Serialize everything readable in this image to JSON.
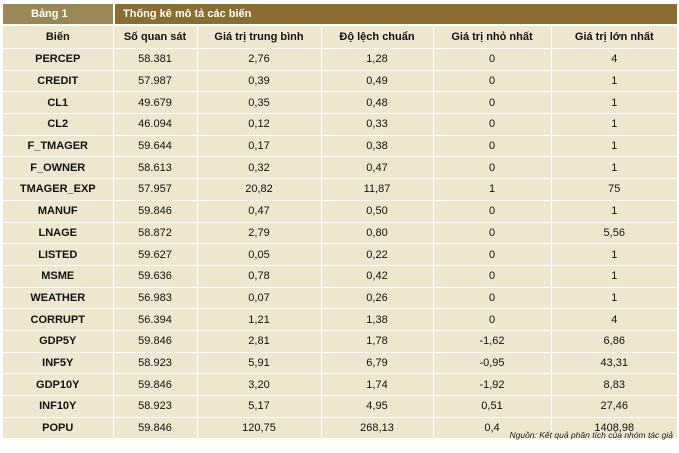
{
  "header": {
    "table_label": "Bảng 1",
    "table_title": "Thống kê mô tả các biến"
  },
  "columns": [
    "Biến",
    "Số quan sát",
    "Giá trị trung bình",
    "Độ lệch chuẩn",
    "Giá trị nhỏ nhất",
    "Giá trị lớn nhất"
  ],
  "rows": [
    [
      "PERCEP",
      "58.381",
      "2,76",
      "1,28",
      "0",
      "4"
    ],
    [
      "CREDIT",
      "57.987",
      "0,39",
      "0,49",
      "0",
      "1"
    ],
    [
      "CL1",
      "49.679",
      "0,35",
      "0,48",
      "0",
      "1"
    ],
    [
      "CL2",
      "46.094",
      "0,12",
      "0,33",
      "0",
      "1"
    ],
    [
      "F_TMAGER",
      "59.644",
      "0,17",
      "0,38",
      "0",
      "1"
    ],
    [
      "F_OWNER",
      "58.613",
      "0,32",
      "0,47",
      "0",
      "1"
    ],
    [
      "TMAGER_EXP",
      "57.957",
      "20,82",
      "11,87",
      "1",
      "75"
    ],
    [
      "MANUF",
      "59.846",
      "0,47",
      "0,50",
      "0",
      "1"
    ],
    [
      "LNAGE",
      "58.872",
      "2,79",
      "0,80",
      "0",
      "5,56"
    ],
    [
      "LISTED",
      "59.627",
      "0,05",
      "0,22",
      "0",
      "1"
    ],
    [
      "MSME",
      "59.636",
      "0,78",
      "0,42",
      "0",
      "1"
    ],
    [
      "WEATHER",
      "56.983",
      "0,07",
      "0,26",
      "0",
      "1"
    ],
    [
      "CORRUPT",
      "56.394",
      "1,21",
      "1,38",
      "0",
      "4"
    ],
    [
      "GDP5Y",
      "59.846",
      "2,81",
      "1,78",
      "-1,62",
      "6,86"
    ],
    [
      "INF5Y",
      "58.923",
      "5,91",
      "6,79",
      "-0,95",
      "43,31"
    ],
    [
      "GDP10Y",
      "59.846",
      "3,20",
      "1,74",
      "-1,92",
      "8,83"
    ],
    [
      "INF10Y",
      "58.923",
      "5,17",
      "4,95",
      "0,51",
      "27,46"
    ],
    [
      "POPU",
      "59.846",
      "120,75",
      "268,13",
      "0,4",
      "1408,98"
    ]
  ],
  "footer": {
    "source": "Nguồn: Kết quả phân tích của nhóm tác giả"
  }
}
